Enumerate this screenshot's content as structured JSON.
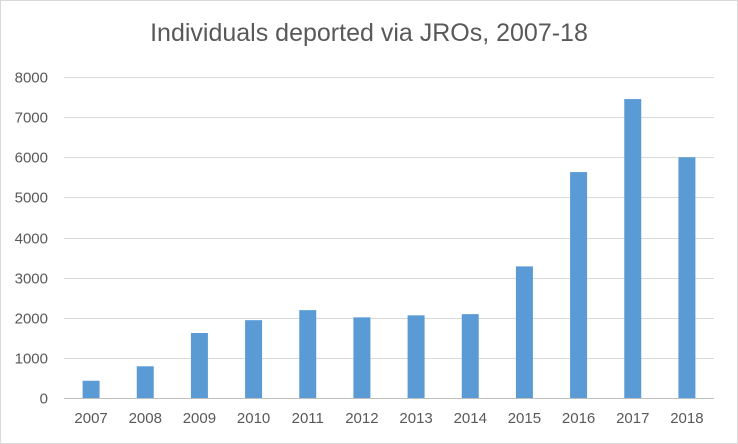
{
  "chart_data": {
    "type": "bar",
    "title": "Individuals  deported via JROs, 2007-18",
    "xlabel": "",
    "ylabel": "",
    "categories": [
      "2007",
      "2008",
      "2009",
      "2010",
      "2011",
      "2012",
      "2013",
      "2014",
      "2015",
      "2016",
      "2017",
      "2018"
    ],
    "series": [
      {
        "values": [
          430,
          790,
          1620,
          1940,
          2190,
          2010,
          2060,
          2090,
          3280,
          5630,
          7450,
          6000
        ]
      }
    ],
    "ylim": [
      0,
      8000
    ],
    "yticks": [
      0,
      1000,
      2000,
      3000,
      4000,
      5000,
      6000,
      7000,
      8000
    ],
    "grid": true,
    "bar_color": "#5b9bd5",
    "grid_color": "#d9d9d9",
    "axis_color": "#bfbfbf",
    "text_color": "#595959"
  }
}
